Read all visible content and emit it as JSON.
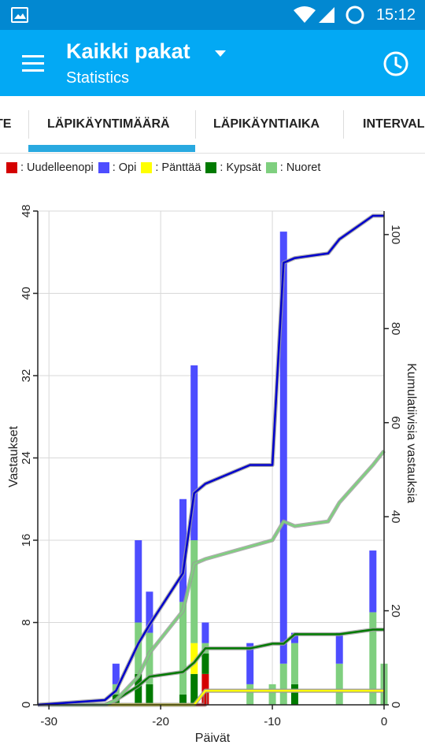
{
  "status": {
    "time": "15:12"
  },
  "appbar": {
    "title": "Kaikki pakat",
    "subtitle": "Statistics"
  },
  "tabs": [
    {
      "label": "TE"
    },
    {
      "label": "LÄPIKÄYNTIMÄÄRÄ",
      "selected": true
    },
    {
      "label": "LÄPIKÄYNTIAIKA"
    },
    {
      "label": "INTERVAL"
    }
  ],
  "legend": [
    {
      "label": ": Uudelleenopi",
      "color": "#d40000"
    },
    {
      "label": ": Opi",
      "color": "#4d4dff"
    },
    {
      "label": ": Pänttää",
      "color": "#ffff00"
    },
    {
      "label": ": Kypsät",
      "color": "#007a00"
    },
    {
      "label": ": Nuoret",
      "color": "#7fcf7f"
    }
  ],
  "chart_data": {
    "type": "bar",
    "stacked": true,
    "xlabel": "Päivät",
    "ylabel": "Vastaukset",
    "y2label": "Kumulatiivisia vastauksia",
    "xlim": [
      -31,
      0
    ],
    "ylim": [
      0,
      48
    ],
    "y2lim": [
      0,
      105
    ],
    "xticks": [
      -30,
      -20,
      -10,
      0
    ],
    "yticks": [
      0,
      8,
      16,
      24,
      32,
      40,
      48
    ],
    "y2ticks": [
      0,
      20,
      40,
      60,
      80,
      100
    ],
    "bars": [
      {
        "x": -24,
        "Uudelleenopi": 0,
        "Opi": 2,
        "Pänttää": 0,
        "Kypsät": 1,
        "Nuoret": 1
      },
      {
        "x": -22,
        "Uudelleenopi": 0,
        "Opi": 8,
        "Pänttää": 0,
        "Kypsät": 3,
        "Nuoret": 5
      },
      {
        "x": -21,
        "Uudelleenopi": 0,
        "Opi": 4,
        "Pänttää": 0,
        "Kypsät": 2,
        "Nuoret": 5
      },
      {
        "x": -18,
        "Uudelleenopi": 0,
        "Opi": 10,
        "Pänttää": 0,
        "Kypsät": 1,
        "Nuoret": 9
      },
      {
        "x": -17,
        "Uudelleenopi": 0,
        "Opi": 17,
        "Pänttää": 3,
        "Kypsät": 3,
        "Nuoret": 10
      },
      {
        "x": -16,
        "Uudelleenopi": 3,
        "Opi": 2,
        "Pänttää": 0,
        "Kypsät": 2,
        "Nuoret": 1
      },
      {
        "x": -12,
        "Uudelleenopi": 0,
        "Opi": 4,
        "Pänttää": 0,
        "Kypsät": 0,
        "Nuoret": 2
      },
      {
        "x": -10,
        "Uudelleenopi": 0,
        "Opi": 0,
        "Pänttää": 0,
        "Kypsät": 0,
        "Nuoret": 2
      },
      {
        "x": -9,
        "Uudelleenopi": 0,
        "Opi": 42,
        "Pänttää": 0,
        "Kypsät": 0,
        "Nuoret": 4
      },
      {
        "x": -8,
        "Uudelleenopi": 0,
        "Opi": 1,
        "Pänttää": 0,
        "Kypsät": 2,
        "Nuoret": 4
      },
      {
        "x": -4,
        "Uudelleenopi": 0,
        "Opi": 3,
        "Pänttää": 0,
        "Kypsät": 0,
        "Nuoret": 4
      },
      {
        "x": -1,
        "Uudelleenopi": 0,
        "Opi": 6,
        "Pänttää": 0,
        "Kypsät": 0,
        "Nuoret": 9
      },
      {
        "x": 0,
        "Uudelleenopi": 0,
        "Opi": 0,
        "Pänttää": 0,
        "Kypsät": 0,
        "Nuoret": 4
      }
    ],
    "cumulative": [
      {
        "name": "Opi",
        "color": "#0000cc",
        "points": [
          [
            -31,
            0
          ],
          [
            -25,
            1
          ],
          [
            -24,
            3
          ],
          [
            -22,
            13
          ],
          [
            -21,
            17
          ],
          [
            -18,
            28
          ],
          [
            -17,
            45
          ],
          [
            -16,
            47
          ],
          [
            -12,
            51
          ],
          [
            -10,
            51
          ],
          [
            -9,
            94
          ],
          [
            -8,
            95
          ],
          [
            -5,
            96
          ],
          [
            -4,
            99
          ],
          [
            -1,
            104
          ],
          [
            0,
            104
          ]
        ]
      },
      {
        "name": "Nuoret",
        "color": "#7fcf7f",
        "points": [
          [
            -31,
            0
          ],
          [
            -25,
            0
          ],
          [
            -24,
            1
          ],
          [
            -22,
            6
          ],
          [
            -21,
            11
          ],
          [
            -18,
            20
          ],
          [
            -17,
            30
          ],
          [
            -16,
            31
          ],
          [
            -10,
            35
          ],
          [
            -9,
            39
          ],
          [
            -8,
            38
          ],
          [
            -5,
            39
          ],
          [
            -4,
            43
          ],
          [
            -1,
            51
          ],
          [
            0,
            54
          ]
        ]
      },
      {
        "name": "Kypsät",
        "color": "#007a00",
        "points": [
          [
            -31,
            0
          ],
          [
            -25,
            0
          ],
          [
            -24,
            1
          ],
          [
            -22,
            4
          ],
          [
            -21,
            6
          ],
          [
            -18,
            7
          ],
          [
            -17,
            9
          ],
          [
            -16,
            12
          ],
          [
            -12,
            12
          ],
          [
            -10,
            13
          ],
          [
            -9,
            13
          ],
          [
            -8,
            15
          ],
          [
            -4,
            15
          ],
          [
            -1,
            16
          ],
          [
            0,
            16
          ]
        ]
      },
      {
        "name": "Pänttää",
        "color": "#ffff00",
        "points": [
          [
            -31,
            0
          ],
          [
            -17,
            0
          ],
          [
            -16,
            3
          ],
          [
            0,
            3
          ]
        ]
      },
      {
        "name": "Uudelleenopi",
        "color": "#d40000",
        "points": [
          [
            -31,
            0
          ],
          [
            -16,
            0
          ],
          [
            -16,
            3
          ],
          [
            0,
            3
          ]
        ]
      }
    ]
  }
}
